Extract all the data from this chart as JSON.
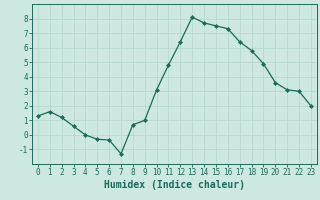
{
  "x": [
    0,
    1,
    2,
    3,
    4,
    5,
    6,
    7,
    8,
    9,
    10,
    11,
    12,
    13,
    14,
    15,
    16,
    17,
    18,
    19,
    20,
    21,
    22,
    23
  ],
  "y": [
    1.3,
    1.6,
    1.2,
    0.6,
    0.0,
    -0.3,
    -0.35,
    -1.3,
    0.7,
    1.0,
    3.1,
    4.8,
    6.4,
    8.1,
    7.7,
    7.5,
    7.3,
    6.4,
    5.8,
    4.9,
    3.6,
    3.1,
    3.0,
    2.0
  ],
  "line_color": "#1a6b5a",
  "marker": "D",
  "marker_size": 2.0,
  "bg_color": "#cce8e0",
  "grid_color": "#b8d8d0",
  "xlabel": "Humidex (Indice chaleur)",
  "xlim": [
    -0.5,
    23.5
  ],
  "ylim": [
    -2,
    9
  ],
  "yticks": [
    -1,
    0,
    1,
    2,
    3,
    4,
    5,
    6,
    7,
    8
  ],
  "xticks": [
    0,
    1,
    2,
    3,
    4,
    5,
    6,
    7,
    8,
    9,
    10,
    11,
    12,
    13,
    14,
    15,
    16,
    17,
    18,
    19,
    20,
    21,
    22,
    23
  ],
  "tick_label_fontsize": 5.5,
  "xlabel_fontsize": 7.0,
  "axis_color": "#1a6b5a",
  "linewidth": 0.9
}
